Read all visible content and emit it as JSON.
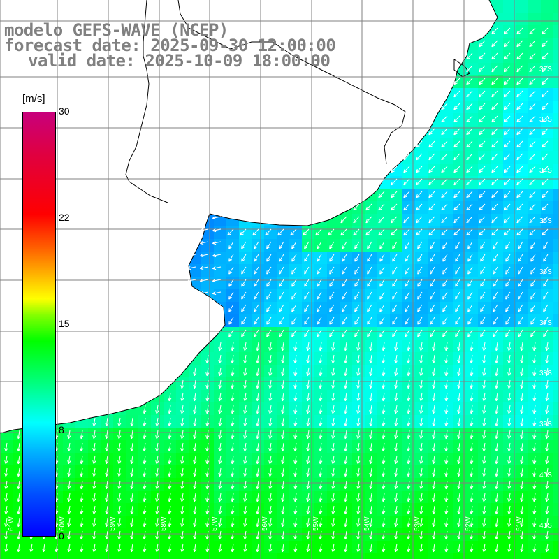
{
  "title": {
    "line1": "modelo GEFS-WAVE (NCEP)",
    "line2": "forecast date: 2025-09-30 12:00:00",
    "line3": "valid date: 2025-10-09 18:00:00"
  },
  "colorbar": {
    "unit": "[m/s]",
    "ticks": [
      "30",
      "22",
      "15",
      "8",
      "0"
    ],
    "tick_values": [
      30,
      22,
      15,
      8,
      0
    ],
    "range": [
      0,
      30
    ],
    "colors": [
      "#0000ff",
      "#00b4ff",
      "#00ffff",
      "#00ff80",
      "#00ff00",
      "#ffff00",
      "#ff6000",
      "#ff0000",
      "#c8007c"
    ]
  },
  "lat_labels": [
    "32S",
    "33S",
    "34S",
    "35S",
    "36S",
    "37S",
    "38S",
    "39S",
    "40S",
    "41S"
  ],
  "lon_labels": [
    "61W",
    "60W",
    "59W",
    "58W",
    "57W",
    "56W",
    "55W",
    "54W",
    "53W",
    "52W",
    "51W"
  ],
  "colors": {
    "land": "#ffffff",
    "coast": "#000000",
    "grid": "#808080",
    "arrows": "#ffffff",
    "title": "#808080"
  }
}
